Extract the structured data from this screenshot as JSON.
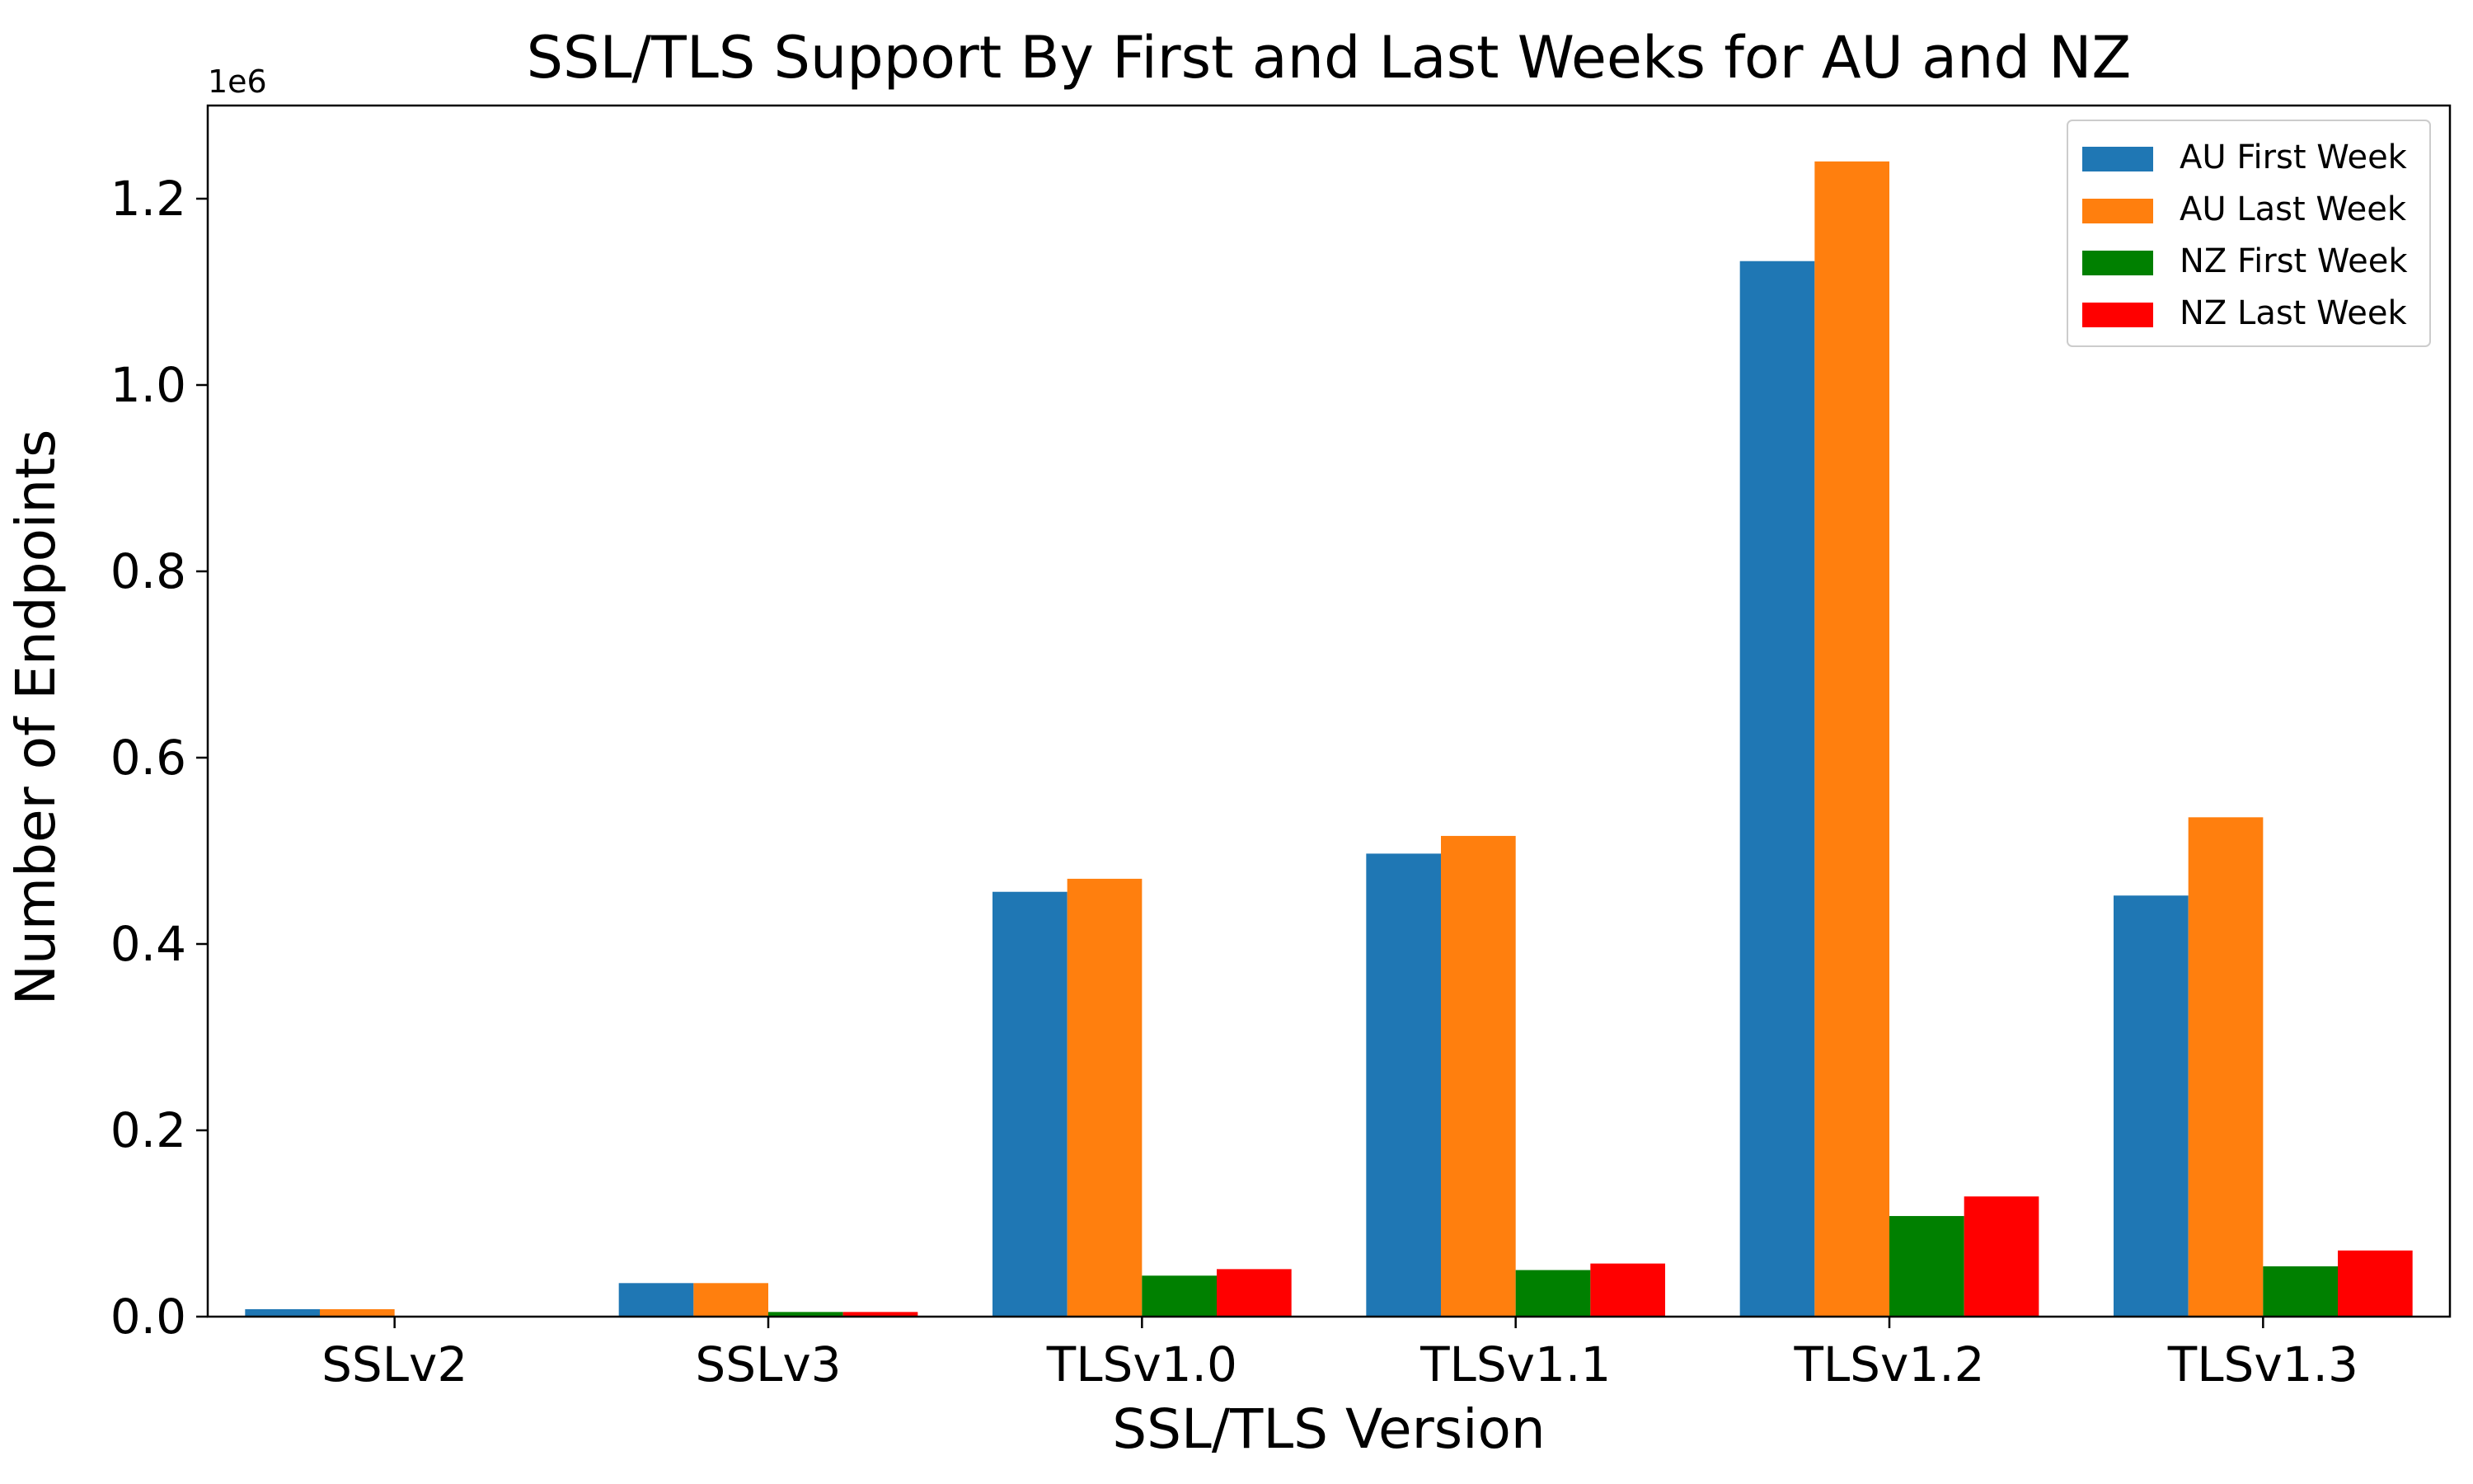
{
  "chart_data": {
    "type": "bar",
    "title": "SSL/TLS Support By First and Last Weeks for AU and NZ",
    "xlabel": "SSL/TLS Version",
    "ylabel": "Number of Endpoints",
    "y_multiplier_label": "1e6",
    "y_scale": 1000000,
    "ylim": [
      0,
      1300000
    ],
    "yticks": [
      0,
      200000,
      400000,
      600000,
      800000,
      1000000,
      1200000
    ],
    "ytick_labels": [
      "0.0",
      "0.2",
      "0.4",
      "0.6",
      "0.8",
      "1.0",
      "1.2"
    ],
    "grid": false,
    "legend_position": "top-right",
    "categories": [
      "SSLv2",
      "SSLv3",
      "TLSv1.0",
      "TLSv1.1",
      "TLSv1.2",
      "TLSv1.3"
    ],
    "series": [
      {
        "name": "AU First Week",
        "color": "#1f77b4",
        "values": [
          8000,
          36000,
          456000,
          497000,
          1133000,
          452000
        ]
      },
      {
        "name": "AU Last Week",
        "color": "#ff7f0e",
        "values": [
          8000,
          36000,
          470000,
          516000,
          1240000,
          536000
        ]
      },
      {
        "name": "NZ First Week",
        "color": "#008000",
        "values": [
          500,
          5000,
          44000,
          50000,
          108000,
          54000
        ]
      },
      {
        "name": "NZ Last Week",
        "color": "#ff0000",
        "values": [
          500,
          5000,
          51000,
          57000,
          129000,
          71000
        ]
      }
    ]
  }
}
